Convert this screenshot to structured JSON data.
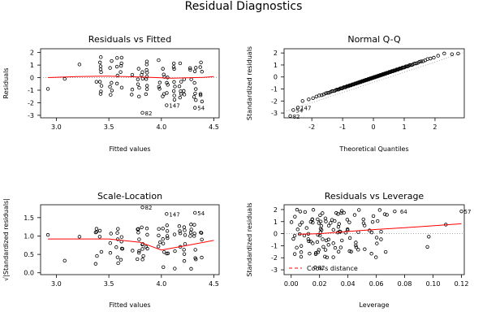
{
  "page": {
    "title": "Residual Diagnostics"
  },
  "colors": {
    "smooth": "#ff0000",
    "reference": "#999999",
    "points": "#000000"
  },
  "chart_data": [
    {
      "type": "scatter",
      "title": "Residuals vs Fitted",
      "xlabel": "Fitted values",
      "ylabel": "Residuals",
      "xlim": [
        2.85,
        4.55
      ],
      "ylim": [
        -3.2,
        2.3
      ],
      "xticks": [
        3.0,
        3.5,
        4.0,
        4.5
      ],
      "xtick_labels": [
        "3.0",
        "3.5",
        "4.0",
        "4.5"
      ],
      "yticks": [
        -3,
        -2,
        -1,
        0,
        1,
        2
      ],
      "ytick_labels": [
        "-3",
        "-2",
        "-1",
        "0",
        "1",
        "2"
      ],
      "reference_line": {
        "type": "hline",
        "y": 0,
        "style": "dotted"
      },
      "annotations": [
        {
          "x": 3.82,
          "y": -2.8,
          "label": "82"
        },
        {
          "x": 4.05,
          "y": -2.2,
          "label": "147"
        },
        {
          "x": 4.32,
          "y": -2.4,
          "label": "54"
        }
      ],
      "smooth": {
        "x": [
          2.92,
          3.2,
          3.5,
          3.8,
          4.1,
          4.4,
          4.5
        ],
        "y": [
          0.0,
          0.08,
          0.12,
          0.05,
          -0.05,
          0.02,
          0.08
        ]
      },
      "seed": 11,
      "points_lead": {
        "x": [
          2.92,
          3.08,
          3.22,
          3.82,
          4.05,
          4.32
        ],
        "y": [
          -0.9,
          -0.1,
          1.05,
          -2.8,
          -2.2,
          -2.4
        ]
      }
    },
    {
      "type": "scatter",
      "title": "Normal Q-Q",
      "xlabel": "Theoretical Quantiles",
      "ylabel": "Standardized residuals",
      "xlim": [
        -2.9,
        2.95
      ],
      "ylim": [
        -3.4,
        2.35
      ],
      "xticks": [
        -2,
        -1,
        0,
        1,
        2
      ],
      "xtick_labels": [
        "-2",
        "-1",
        "0",
        "1",
        "2"
      ],
      "yticks": [
        -3,
        -2,
        -1,
        0,
        1,
        2
      ],
      "ytick_labels": [
        "-3",
        "-2",
        "-1",
        "0",
        "1",
        "2"
      ],
      "reference_line": {
        "type": "abline",
        "from": [
          -2.9,
          -2.9
        ],
        "to": [
          2.95,
          2.05
        ],
        "style": "dotted"
      },
      "annotations": [
        {
          "x": -2.7,
          "y": -3.25,
          "label": "82"
        },
        {
          "x": -2.45,
          "y": -2.55,
          "label": "147"
        },
        {
          "x": -2.6,
          "y": -2.75,
          "label": "54"
        }
      ],
      "points_lead": {
        "x": [
          -2.7,
          -2.6,
          -2.45,
          2.55,
          2.75
        ],
        "y": [
          -3.25,
          -2.75,
          -2.55,
          1.9,
          1.95
        ]
      }
    },
    {
      "type": "scatter",
      "title": "Scale-Location",
      "xlabel": "Fitted values",
      "ylabel": "√|Standardized residuals|",
      "xlim": [
        2.85,
        4.55
      ],
      "ylim": [
        -0.05,
        1.85
      ],
      "xticks": [
        3.0,
        3.5,
        4.0,
        4.5
      ],
      "xtick_labels": [
        "3.0",
        "3.5",
        "4.0",
        "4.5"
      ],
      "yticks": [
        0.0,
        0.5,
        1.0,
        1.5
      ],
      "ytick_labels": [
        "0.0",
        "0.5",
        "1.0",
        "1.5"
      ],
      "annotations": [
        {
          "x": 3.82,
          "y": 1.78,
          "label": "82"
        },
        {
          "x": 4.05,
          "y": 1.6,
          "label": "147"
        },
        {
          "x": 4.32,
          "y": 1.63,
          "label": "54"
        }
      ],
      "smooth": {
        "x": [
          2.92,
          3.2,
          3.5,
          3.8,
          4.0,
          4.2,
          4.5
        ],
        "y": [
          0.92,
          0.92,
          0.92,
          0.83,
          0.62,
          0.72,
          0.88
        ]
      },
      "seed": 23,
      "points_lead": {
        "x": [
          2.92,
          3.08,
          3.22,
          3.82,
          4.05,
          4.32
        ],
        "y": [
          1.03,
          0.33,
          0.98,
          1.78,
          1.6,
          1.63
        ]
      }
    },
    {
      "type": "scatter",
      "title": "Residuals vs Leverage",
      "xlabel": "Leverage",
      "ylabel": "Standardized residuals",
      "xlim": [
        -0.005,
        0.122
      ],
      "ylim": [
        -3.4,
        2.4
      ],
      "xticks": [
        0.0,
        0.02,
        0.04,
        0.06,
        0.08,
        0.1,
        0.12
      ],
      "xtick_labels": [
        "0.00",
        "0.02",
        "0.04",
        "0.06",
        "0.08",
        "0.10",
        "0.12"
      ],
      "yticks": [
        -3,
        -2,
        -1,
        0,
        1,
        2
      ],
      "ytick_labels": [
        "-3",
        "-2",
        "-1",
        "0",
        "1",
        "2"
      ],
      "reference_line": {
        "type": "hline",
        "y": 0,
        "style": "dotted"
      },
      "legend": {
        "label": "Cook's distance",
        "position": "bottom-left",
        "style": "dashed red"
      },
      "annotations": [
        {
          "x": 0.075,
          "y": 1.85,
          "label": "64"
        },
        {
          "x": 0.12,
          "y": 1.85,
          "label": "57"
        },
        {
          "x": 0.017,
          "y": -2.8,
          "label": "82"
        }
      ],
      "smooth": {
        "x": [
          0.005,
          0.02,
          0.04,
          0.06,
          0.08,
          0.1,
          0.12
        ],
        "y": [
          -0.05,
          0.0,
          0.18,
          0.35,
          0.5,
          0.65,
          0.82
        ]
      },
      "seed": 37,
      "points_lead": {
        "x": [
          0.073,
          0.12,
          0.017,
          0.109,
          0.097,
          0.096
        ],
        "y": [
          1.85,
          1.85,
          -2.8,
          0.75,
          -0.25,
          -1.1
        ]
      }
    }
  ]
}
